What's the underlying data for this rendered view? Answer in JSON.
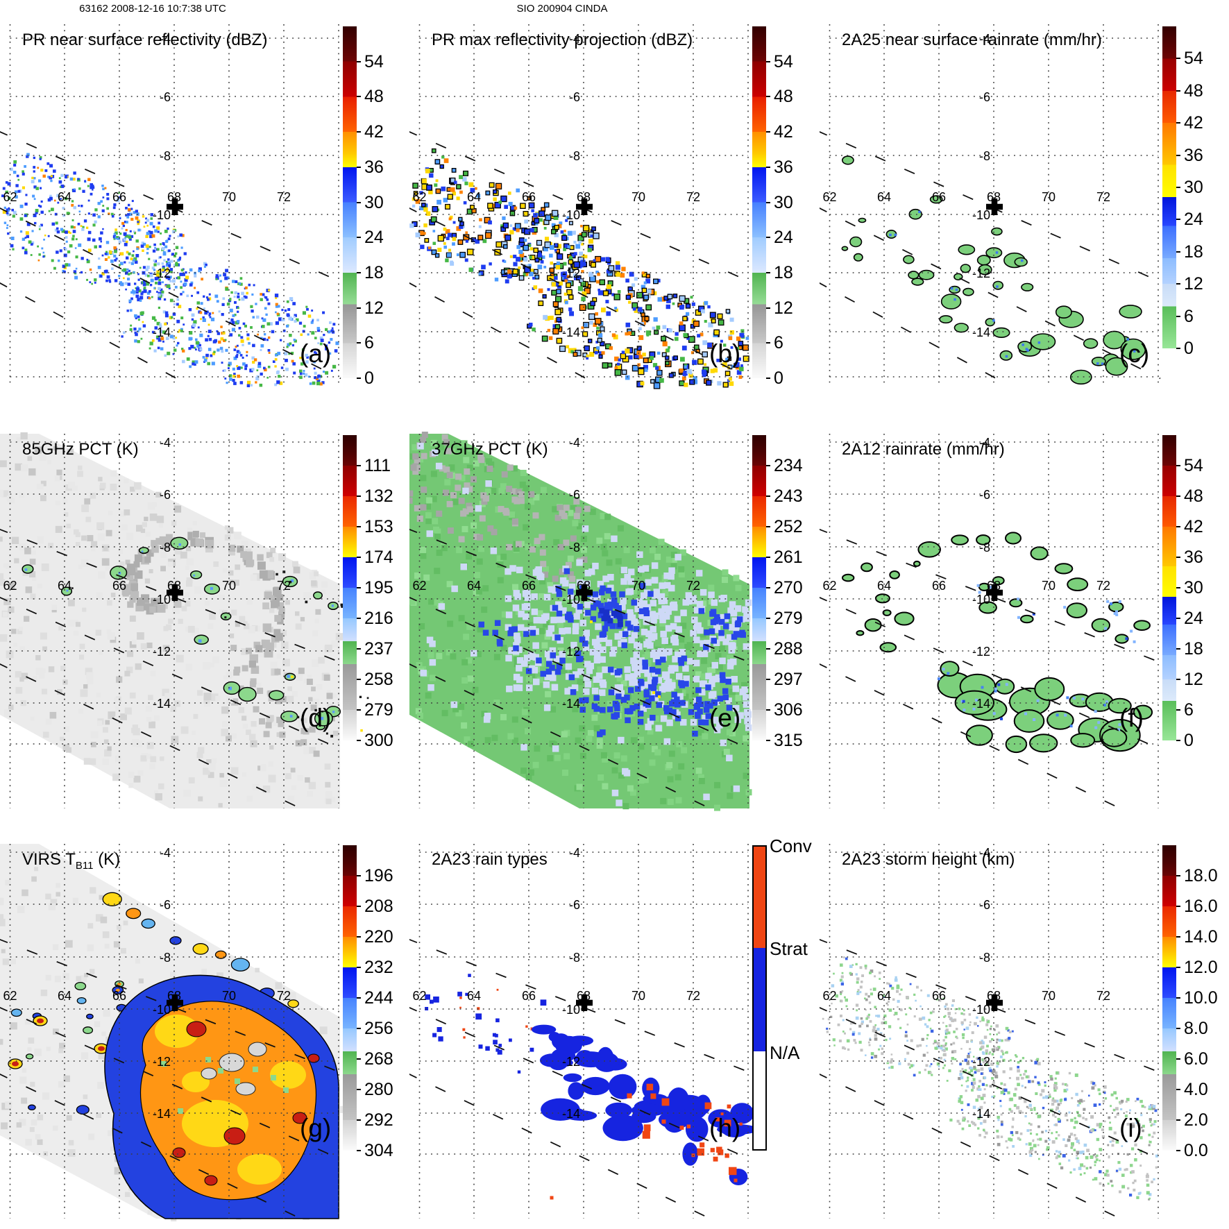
{
  "header": {
    "left": "63162 2008-12-16 10:7:38 UTC",
    "center": "SIO 200904 CINDA"
  },
  "grid": {
    "lon_labels": [
      "62",
      "64",
      "66",
      "68",
      "70",
      "72"
    ],
    "lat_labels": [
      "-4",
      "-6",
      "-8",
      "-10",
      "-12",
      "-14"
    ]
  },
  "panels": [
    {
      "id": "a",
      "letter": "(a)",
      "title": "PR near surface reflectivity (dBZ)",
      "colorbar": "dbz",
      "field": "pr_a"
    },
    {
      "id": "b",
      "letter": "(b)",
      "title": "PR max reflectivity projection (dBZ)",
      "colorbar": "dbz",
      "field": "pr_b"
    },
    {
      "id": "c",
      "letter": "(c)",
      "title": "2A25 near surface rainrate (mm/hr)",
      "colorbar": "rain",
      "field": "rr_c"
    },
    {
      "id": "d",
      "letter": "(d)",
      "title": "85GHz PCT (K)",
      "colorbar": "pct85",
      "field": "pct85"
    },
    {
      "id": "e",
      "letter": "(e)",
      "title": "37GHz PCT (K)",
      "colorbar": "pct37",
      "field": "pct37"
    },
    {
      "id": "f",
      "letter": "(f)",
      "title": "2A12 rainrate (mm/hr)",
      "colorbar": "rain",
      "field": "rr_f"
    },
    {
      "id": "g",
      "letter": "(g)",
      "title_pre": "VIRS T",
      "title_sub": "B11",
      "title_post": " (K)",
      "colorbar": "virs",
      "field": "virs"
    },
    {
      "id": "h",
      "letter": "(h)",
      "title": "2A23 rain types",
      "colorbar": "raintype",
      "field": "types"
    },
    {
      "id": "i",
      "letter": "(i)",
      "title": "2A23 storm height (km)",
      "colorbar": "height",
      "field": "height"
    }
  ],
  "scales": {
    "dbz": [
      [
        0,
        "#320000"
      ],
      [
        0.05,
        "#500202"
      ],
      [
        0.1,
        "#6e0404"
      ],
      [
        0.1,
        "#8e0000"
      ],
      [
        0.2,
        "#cc0000"
      ],
      [
        0.2,
        "#e81e00"
      ],
      [
        0.3,
        "#ff6400"
      ],
      [
        0.3,
        "#ff9000"
      ],
      [
        0.36,
        "#ffc800"
      ],
      [
        0.4,
        "#ffff00"
      ],
      [
        0.4,
        "#0014f0"
      ],
      [
        0.5,
        "#3c5cff"
      ],
      [
        0.5,
        "#4680ff"
      ],
      [
        0.6,
        "#8cc0ff"
      ],
      [
        0.6,
        "#a0ccff"
      ],
      [
        0.7,
        "#dce8ff"
      ],
      [
        0.7,
        "#50b450"
      ],
      [
        0.79,
        "#96dc96"
      ],
      [
        0.79,
        "#969696"
      ],
      [
        0.9,
        "#c8c8c8"
      ],
      [
        0.9,
        "#d5d5d5"
      ],
      [
        1,
        "#fafafa"
      ]
    ],
    "rain": [
      [
        0,
        "#320000"
      ],
      [
        0.1,
        "#6e0404"
      ],
      [
        0.1,
        "#960000"
      ],
      [
        0.2,
        "#cc0000"
      ],
      [
        0.2,
        "#e62800"
      ],
      [
        0.3,
        "#ff5a00"
      ],
      [
        0.3,
        "#ff7800"
      ],
      [
        0.43,
        "#ffc800"
      ],
      [
        0.43,
        "#ffe100"
      ],
      [
        0.53,
        "#ffff00"
      ],
      [
        0.53,
        "#0014dc"
      ],
      [
        0.62,
        "#2846ff"
      ],
      [
        0.62,
        "#3c6eff"
      ],
      [
        0.72,
        "#78aaff"
      ],
      [
        0.72,
        "#8cbcff"
      ],
      [
        0.8,
        "#b4d2ff"
      ],
      [
        0.8,
        "#c8dcf8"
      ],
      [
        0.87,
        "#dceafa"
      ],
      [
        0.87,
        "#5abe5a"
      ],
      [
        1,
        "#98e698"
      ]
    ],
    "pct": [
      [
        0,
        "#2d0000"
      ],
      [
        0.055,
        "#4b0202"
      ],
      [
        0.1,
        "#6b0404"
      ],
      [
        0.1,
        "#8e0000"
      ],
      [
        0.2,
        "#d00000"
      ],
      [
        0.2,
        "#ea2800"
      ],
      [
        0.3,
        "#ff6400"
      ],
      [
        0.3,
        "#ff8c00"
      ],
      [
        0.4,
        "#ffff00"
      ],
      [
        0.4,
        "#0014f0"
      ],
      [
        0.5,
        "#2e4cff"
      ],
      [
        0.5,
        "#4682ff"
      ],
      [
        0.6,
        "#78b4ff"
      ],
      [
        0.6,
        "#96c8ff"
      ],
      [
        0.675,
        "#d2e0ff"
      ],
      [
        0.675,
        "#50b450"
      ],
      [
        0.75,
        "#8cd88c"
      ],
      [
        0.75,
        "#9a9a9a"
      ],
      [
        0.9,
        "#c4c4c4"
      ],
      [
        0.9,
        "#d2d2d2"
      ],
      [
        1,
        "#fbfbfb"
      ]
    ]
  },
  "colorbars": {
    "dbz": {
      "scale": "dbz",
      "ticks": [
        "54",
        "48",
        "42",
        "36",
        "30",
        "24",
        "18",
        "12",
        "6",
        "0"
      ]
    },
    "rain": {
      "scale": "rain",
      "ticks": [
        "54",
        "48",
        "42",
        "36",
        "30",
        "24",
        "18",
        "12",
        "6",
        "0"
      ]
    },
    "pct85": {
      "scale": "pct",
      "ticks": [
        "111",
        "132",
        "153",
        "174",
        "195",
        "216",
        "237",
        "258",
        "279",
        "300"
      ]
    },
    "pct37": {
      "scale": "pct",
      "ticks": [
        "234",
        "243",
        "252",
        "261",
        "270",
        "279",
        "288",
        "297",
        "306",
        "315"
      ]
    },
    "virs": {
      "scale": "pct",
      "ticks": [
        "196",
        "208",
        "220",
        "232",
        "244",
        "256",
        "268",
        "280",
        "292",
        "304"
      ]
    },
    "height": {
      "scale": "pct",
      "ticks": [
        "18.0",
        "16.0",
        "14.0",
        "12.0",
        "10.0",
        "8.0",
        "6.0",
        "4.0",
        "2.0",
        "0.0"
      ]
    },
    "raintype": {
      "labels": [
        "Conv",
        "Strat",
        "N/A"
      ],
      "colors": [
        "#f04614",
        "#1624e0",
        "#ffffff"
      ],
      "fracs": [
        0,
        0.336,
        0.677,
        1
      ]
    }
  },
  "palettes": {
    "pr_colors": [
      "#1e3cf0",
      "#4d9cff",
      "#a6ccff",
      "#46b846",
      "#ffd800",
      "#ff8200"
    ],
    "rain_blob": "#7cd07c",
    "blob_stroke": "#000000",
    "dot_blue": "#3c78f0",
    "f_dots": [
      "#82b4ff",
      "#4682f0",
      "#1e46dc"
    ],
    "height_colors": [
      "#c3c3c3",
      "#9b9b9b",
      "#8ed68e",
      "#a9d2f2",
      "#3c64e6",
      "#ffffff"
    ],
    "types": {
      "strat": "#1624e0",
      "conv": "#f04614"
    },
    "pct85": {
      "base": "#ebebeb",
      "noise": [
        "#e8e8e8",
        "#dedede",
        "#d2d2d2",
        "#c6c6c6"
      ],
      "dark": [
        "#bdbdbd",
        "#aeaeae"
      ],
      "cell": "#8cd88c",
      "dot": "#5a96ff",
      "yellow": "#ffe100",
      "fleck": "#161616"
    },
    "pct37": {
      "base": "#74c874",
      "noise": [
        "#63bd63",
        "#82d482",
        "#90dc90"
      ],
      "gray": [
        "#a5a5a5",
        "#b4b4b4"
      ],
      "pale": "#ced9f6",
      "blue": "#2846e8",
      "dark": "#1830c8",
      "yellow": "#ffe800"
    },
    "virs": {
      "base": "#ededed",
      "noise": [
        "#e6e6e6",
        "#dcdcdc",
        "#d0d0d0"
      ],
      "blue": "#2342e0",
      "orange": "#ff9614",
      "yellow": "#ffd816",
      "red": "#c81e14",
      "gray": "#d8d8d8",
      "green": "#8cd88c",
      "cyan": "#64b4f0"
    }
  },
  "chart_data": [
    {
      "panel": "a",
      "type": "heatmap",
      "title": "PR near surface reflectivity (dBZ)",
      "colorbar_ticks": [
        54,
        48,
        42,
        36,
        30,
        24,
        18,
        12,
        6,
        0
      ],
      "lon_ticks": [
        62,
        64,
        66,
        68,
        70,
        72
      ],
      "lat_ticks": [
        -4,
        -6,
        -8,
        -10,
        -12,
        -14
      ],
      "marker": "cross at lon 68, lat -9.8",
      "note": "scattered echoes 10-45 dBZ inside dashed PR swath band"
    },
    {
      "panel": "b",
      "type": "heatmap",
      "title": "PR max reflectivity projection (dBZ)",
      "colorbar_ticks": [
        54,
        48,
        42,
        36,
        30,
        24,
        18,
        12,
        6,
        0
      ],
      "lon_ticks": [
        62,
        64,
        66,
        68,
        70,
        72
      ],
      "lat_ticks": [
        -4,
        -6,
        -8,
        -10,
        -12,
        -14
      ],
      "note": "contoured echoes with more 35-50 dBZ cores"
    },
    {
      "panel": "c",
      "type": "heatmap",
      "title": "2A25 near surface rainrate (mm/hr)",
      "colorbar_ticks": [
        54,
        48,
        42,
        36,
        30,
        24,
        18,
        12,
        6,
        0
      ],
      "lon_ticks": [
        62,
        64,
        66,
        68,
        70,
        72
      ],
      "lat_ticks": [
        -4,
        -6,
        -8,
        -10,
        -12,
        -14
      ],
      "note": "mostly 0-8 mm/hr green contoured areas"
    },
    {
      "panel": "d",
      "type": "heatmap",
      "title": "85GHz PCT (K)",
      "colorbar_ticks": [
        111,
        132,
        153,
        174,
        195,
        216,
        237,
        258,
        279,
        300
      ],
      "lon_ticks": [
        62,
        64,
        66,
        68,
        70,
        72
      ],
      "lat_ticks": [
        -4,
        -6,
        -8,
        -10,
        -12,
        -14
      ],
      "note": "gray 260-300K swath with 220-250K green contoured cells"
    },
    {
      "panel": "e",
      "type": "heatmap",
      "title": "37GHz PCT (K)",
      "colorbar_ticks": [
        234,
        243,
        252,
        261,
        270,
        279,
        288,
        297,
        306,
        315
      ],
      "lon_ticks": [
        62,
        64,
        66,
        68,
        70,
        72
      ],
      "lat_ticks": [
        -4,
        -6,
        -8,
        -10,
        -12,
        -14
      ],
      "note": "green ~285K background, pale blue 275-282K, dark blue 265-272K cores"
    },
    {
      "panel": "f",
      "type": "heatmap",
      "title": "2A12 rainrate (mm/hr)",
      "colorbar_ticks": [
        54,
        48,
        42,
        36,
        30,
        24,
        18,
        12,
        6,
        0
      ],
      "lon_ticks": [
        62,
        64,
        66,
        68,
        70,
        72
      ],
      "lat_ticks": [
        -4,
        -6,
        -8,
        -10,
        -12,
        -14
      ],
      "note": "0-8 mm/hr green contoured rain areas in spiral pattern"
    },
    {
      "panel": "g",
      "type": "heatmap",
      "title": "VIRS TB11 (K)",
      "colorbar_ticks": [
        196,
        208,
        220,
        232,
        244,
        256,
        268,
        280,
        292,
        304
      ],
      "lon_ticks": [
        62,
        64,
        66,
        68,
        70,
        72
      ],
      "lat_ticks": [
        -4,
        -6,
        -8,
        -10,
        -12,
        -14
      ],
      "note": "cold cloud tops 200-240K (orange/yellow/red) ringed by 240-260K blue"
    },
    {
      "panel": "h",
      "type": "categorical-map",
      "title": "2A23 rain types",
      "categories": [
        "Conv",
        "Strat",
        "N/A"
      ],
      "lon_ticks": [
        62,
        64,
        66,
        68,
        70,
        72
      ],
      "lat_ticks": [
        -4,
        -6,
        -8,
        -10,
        -12,
        -14
      ],
      "note": "stratiform blue regions with embedded convective red patches"
    },
    {
      "panel": "i",
      "type": "heatmap",
      "title": "2A23 storm height (km)",
      "colorbar_ticks": [
        18,
        16,
        14,
        12,
        10,
        8,
        6,
        4,
        2,
        0
      ],
      "lon_ticks": [
        62,
        64,
        66,
        68,
        70,
        72
      ],
      "lat_ticks": [
        -4,
        -6,
        -8,
        -10,
        -12,
        -14
      ],
      "note": "storm heights mostly 2-8 km (gray/green/light blue)"
    }
  ]
}
